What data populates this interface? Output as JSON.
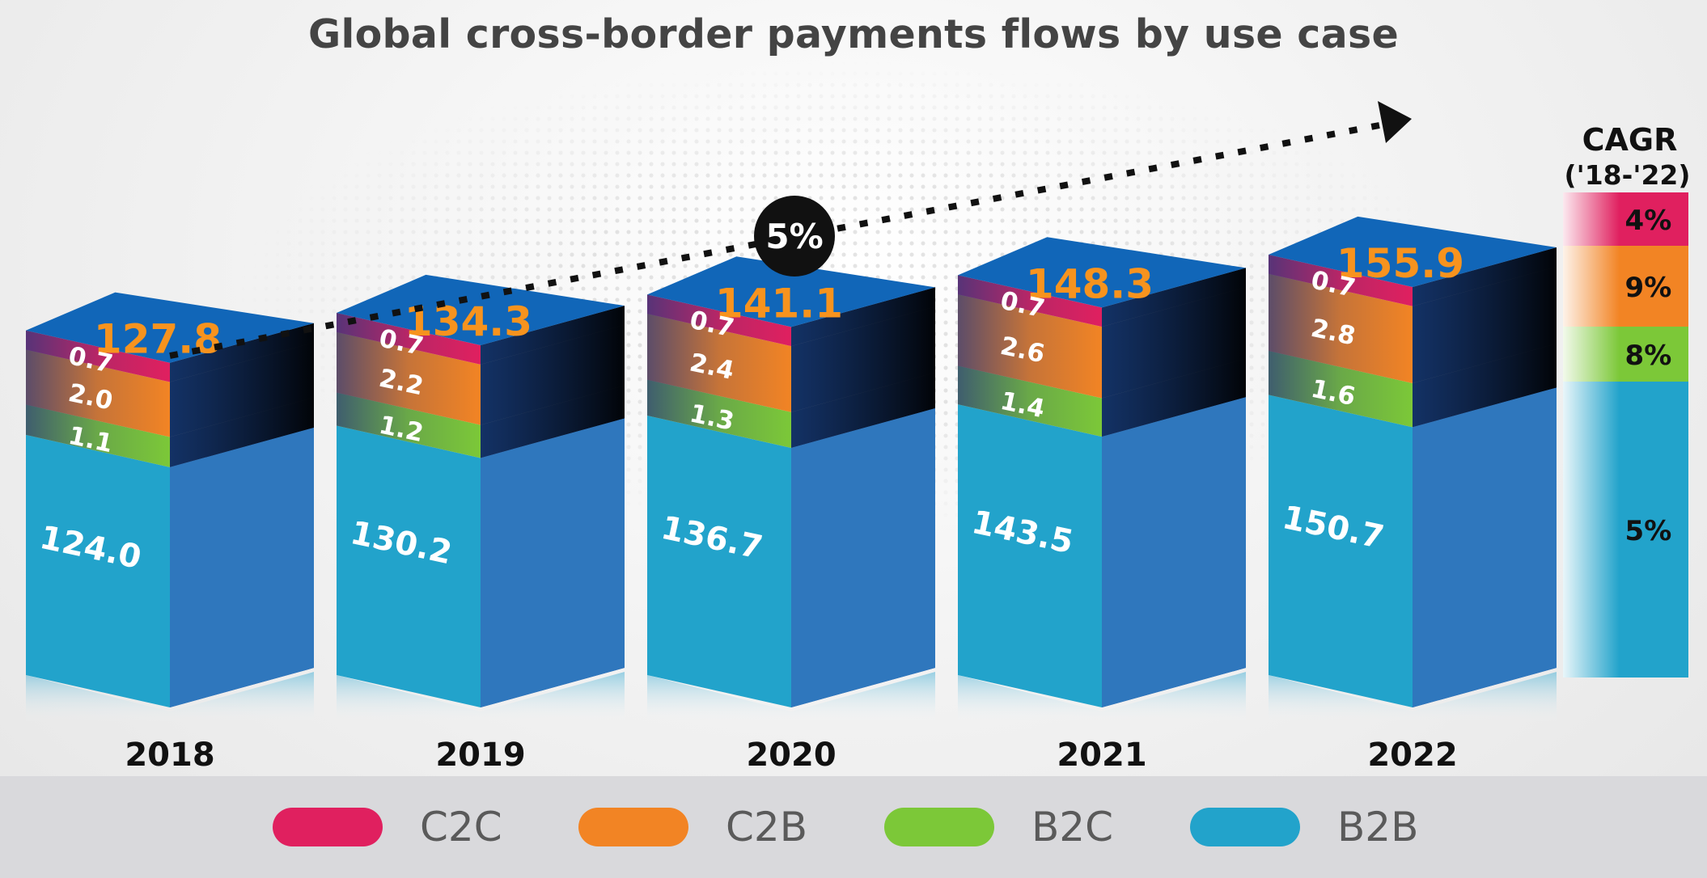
{
  "title": "Global cross-border payments flows by use case",
  "overall_growth": "5%",
  "cagr_header": [
    "CAGR",
    "('18-'22)"
  ],
  "colors": {
    "C2C": "#e0205f",
    "C2B": "#f28424",
    "B2C": "#7cc838",
    "B2B": "#22a3cb",
    "top": "#1166b8",
    "total_label": "#f7931e"
  },
  "chart_data": {
    "type": "bar",
    "stacked": true,
    "title": "Global cross-border payments flows by use case",
    "categories": [
      "2018",
      "2019",
      "2020",
      "2021",
      "2022"
    ],
    "totals": [
      127.8,
      134.3,
      141.1,
      148.3,
      155.9
    ],
    "series": [
      {
        "name": "B2B",
        "values": [
          124.0,
          130.2,
          136.7,
          143.5,
          150.7
        ],
        "cagr": "5%"
      },
      {
        "name": "B2C",
        "values": [
          1.1,
          1.2,
          1.3,
          1.4,
          1.6
        ],
        "cagr": "8%"
      },
      {
        "name": "C2B",
        "values": [
          2.0,
          2.2,
          2.4,
          2.6,
          2.8
        ],
        "cagr": "9%"
      },
      {
        "name": "C2C",
        "values": [
          0.7,
          0.7,
          0.7,
          0.7,
          0.7
        ],
        "cagr": "4%"
      }
    ],
    "legend_position": "bottom",
    "grid": false
  },
  "legend": [
    {
      "label": "C2C",
      "color": "#e0205f"
    },
    {
      "label": "C2B",
      "color": "#f28424"
    },
    {
      "label": "B2C",
      "color": "#7cc838"
    },
    {
      "label": "B2B",
      "color": "#22a3cb"
    }
  ]
}
